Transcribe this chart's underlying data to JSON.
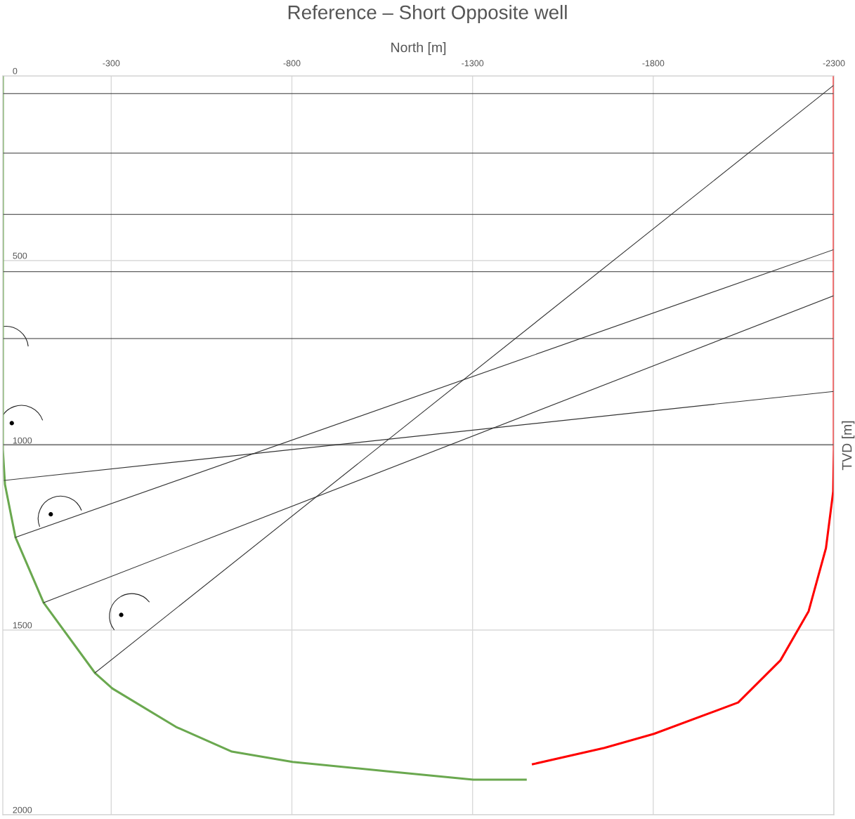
{
  "chart_data": {
    "type": "line",
    "title": "Reference – Short Opposite well",
    "xlabel": "North [m]",
    "ylabel": "TVD [m]",
    "xlim": [
      0,
      -2300
    ],
    "xticks": [
      -300,
      -800,
      -1300,
      -1800,
      -2300
    ],
    "ylim": [
      2000,
      0
    ],
    "yticks": [
      0,
      500,
      1000,
      1500,
      2000
    ],
    "grid": true,
    "legend": false,
    "marker": "none",
    "line_style": "solid",
    "series": [
      {
        "color": "#6aa84f",
        "x": [
          0,
          0,
          -6,
          -35,
          -113,
          -255,
          -303,
          -479,
          -634,
          -802,
          -1062,
          -1302,
          -1447
        ],
        "values": [
          0,
          1011,
          1106,
          1249,
          1426,
          1616,
          1658,
          1762,
          1829,
          1857,
          1882,
          1905,
          1905
        ]
      },
      {
        "color": "#ff0000",
        "x": [
          -2300,
          -2300,
          -2298,
          -2278,
          -2230,
          -2152,
          -2035,
          -1802,
          -1665,
          -1467
        ],
        "values": [
          0,
          1011,
          1125,
          1278,
          1449,
          1582,
          1696,
          1781,
          1819,
          1863
        ]
      },
      {
        "color": "#333333",
        "x": [
          -4,
          -2300
        ],
        "values": [
          1095,
          854
        ]
      },
      {
        "color": "#333333",
        "x": [
          -35,
          -2300
        ],
        "values": [
          1249,
          470
        ]
      },
      {
        "color": "#333333",
        "x": [
          -113,
          -2300
        ],
        "values": [
          1426,
          595
        ]
      },
      {
        "color": "#333333",
        "x": [
          -255,
          -2300
        ],
        "values": [
          1616,
          25
        ]
      }
    ],
    "ref_lines": [
      {
        "axis": "y",
        "value": 48,
        "color": "#333333"
      },
      {
        "axis": "y",
        "value": 209,
        "color": "#333333"
      },
      {
        "axis": "y",
        "value": 375,
        "color": "#333333"
      },
      {
        "axis": "y",
        "value": 530,
        "color": "#333333"
      },
      {
        "axis": "y",
        "value": 711,
        "color": "#333333"
      },
      {
        "axis": "y",
        "value": 998,
        "color": "#333333"
      }
    ]
  }
}
